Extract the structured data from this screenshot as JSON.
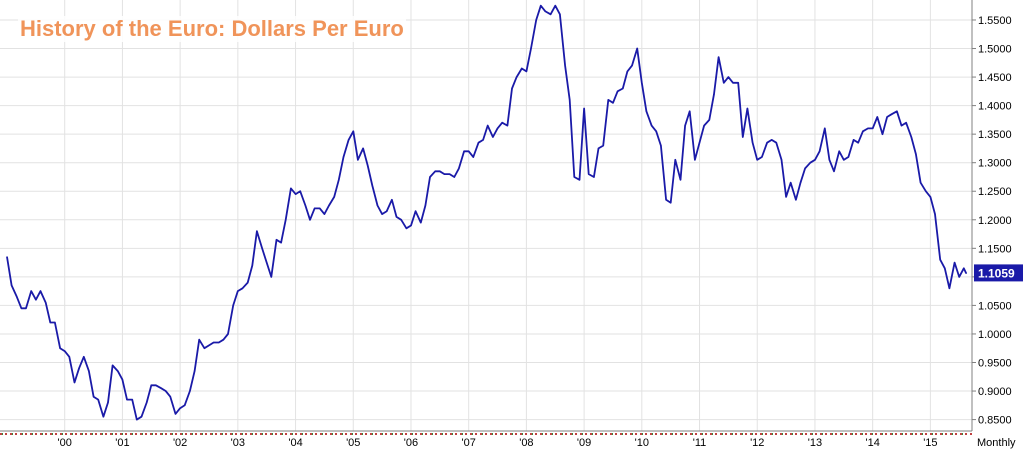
{
  "chart_data": {
    "type": "line",
    "title": "History of the Euro: Dollars Per Euro",
    "frequency_label": "Monthly",
    "last_value_label": "1.1059",
    "ylim": [
      0.83,
      1.585
    ],
    "xlim": [
      1999.0,
      2015.6
    ],
    "y_ticks": [
      "0.8500",
      "0.9000",
      "0.9500",
      "1.0000",
      "1.0500",
      "1.1000",
      "1.1500",
      "1.2000",
      "1.2500",
      "1.3000",
      "1.3500",
      "1.4000",
      "1.4500",
      "1.5000",
      "1.5500"
    ],
    "x_ticks": [
      {
        "label": "'00",
        "x": 2000
      },
      {
        "label": "'01",
        "x": 2001
      },
      {
        "label": "'02",
        "x": 2002
      },
      {
        "label": "'03",
        "x": 2003
      },
      {
        "label": "'04",
        "x": 2004
      },
      {
        "label": "'05",
        "x": 2005
      },
      {
        "label": "'06",
        "x": 2006
      },
      {
        "label": "'07",
        "x": 2007
      },
      {
        "label": "'08",
        "x": 2008
      },
      {
        "label": "'09",
        "x": 2009
      },
      {
        "label": "'10",
        "x": 2010
      },
      {
        "label": "'11",
        "x": 2011
      },
      {
        "label": "'12",
        "x": 2012
      },
      {
        "label": "'13",
        "x": 2013
      },
      {
        "label": "'14",
        "x": 2014
      },
      {
        "label": "'15",
        "x": 2015
      }
    ],
    "grid": true,
    "colors": {
      "line": "#1a1aa8",
      "title": "#f0945a",
      "grid": "#e2e2e2",
      "badge": "#1a1aa8"
    },
    "series": [
      {
        "values": [
          [
            1999.0,
            1.135
          ],
          [
            1999.08,
            1.085
          ],
          [
            1999.17,
            1.065
          ],
          [
            1999.25,
            1.045
          ],
          [
            1999.33,
            1.045
          ],
          [
            1999.42,
            1.075
          ],
          [
            1999.5,
            1.06
          ],
          [
            1999.58,
            1.075
          ],
          [
            1999.67,
            1.055
          ],
          [
            1999.75,
            1.02
          ],
          [
            1999.83,
            1.02
          ],
          [
            1999.92,
            0.975
          ],
          [
            2000.0,
            0.97
          ],
          [
            2000.08,
            0.96
          ],
          [
            2000.17,
            0.915
          ],
          [
            2000.25,
            0.94
          ],
          [
            2000.33,
            0.96
          ],
          [
            2000.42,
            0.935
          ],
          [
            2000.5,
            0.89
          ],
          [
            2000.58,
            0.885
          ],
          [
            2000.67,
            0.855
          ],
          [
            2000.75,
            0.88
          ],
          [
            2000.83,
            0.945
          ],
          [
            2000.92,
            0.935
          ],
          [
            2001.0,
            0.92
          ],
          [
            2001.08,
            0.885
          ],
          [
            2001.17,
            0.885
          ],
          [
            2001.25,
            0.85
          ],
          [
            2001.33,
            0.855
          ],
          [
            2001.42,
            0.88
          ],
          [
            2001.5,
            0.91
          ],
          [
            2001.58,
            0.91
          ],
          [
            2001.67,
            0.905
          ],
          [
            2001.75,
            0.9
          ],
          [
            2001.83,
            0.89
          ],
          [
            2001.92,
            0.86
          ],
          [
            2002.0,
            0.87
          ],
          [
            2002.08,
            0.875
          ],
          [
            2002.17,
            0.9
          ],
          [
            2002.25,
            0.935
          ],
          [
            2002.33,
            0.99
          ],
          [
            2002.42,
            0.975
          ],
          [
            2002.5,
            0.98
          ],
          [
            2002.58,
            0.985
          ],
          [
            2002.67,
            0.985
          ],
          [
            2002.75,
            0.99
          ],
          [
            2002.83,
            1.0
          ],
          [
            2002.92,
            1.05
          ],
          [
            2003.0,
            1.075
          ],
          [
            2003.08,
            1.08
          ],
          [
            2003.17,
            1.09
          ],
          [
            2003.25,
            1.12
          ],
          [
            2003.33,
            1.18
          ],
          [
            2003.42,
            1.15
          ],
          [
            2003.5,
            1.125
          ],
          [
            2003.58,
            1.1
          ],
          [
            2003.67,
            1.165
          ],
          [
            2003.75,
            1.16
          ],
          [
            2003.83,
            1.2
          ],
          [
            2003.92,
            1.255
          ],
          [
            2004.0,
            1.245
          ],
          [
            2004.08,
            1.25
          ],
          [
            2004.17,
            1.225
          ],
          [
            2004.25,
            1.2
          ],
          [
            2004.33,
            1.22
          ],
          [
            2004.42,
            1.22
          ],
          [
            2004.5,
            1.21
          ],
          [
            2004.58,
            1.225
          ],
          [
            2004.67,
            1.24
          ],
          [
            2004.75,
            1.27
          ],
          [
            2004.83,
            1.31
          ],
          [
            2004.92,
            1.34
          ],
          [
            2005.0,
            1.355
          ],
          [
            2005.08,
            1.305
          ],
          [
            2005.17,
            1.325
          ],
          [
            2005.25,
            1.295
          ],
          [
            2005.33,
            1.26
          ],
          [
            2005.42,
            1.225
          ],
          [
            2005.5,
            1.21
          ],
          [
            2005.58,
            1.215
          ],
          [
            2005.67,
            1.235
          ],
          [
            2005.75,
            1.205
          ],
          [
            2005.83,
            1.2
          ],
          [
            2005.92,
            1.185
          ],
          [
            2006.0,
            1.19
          ],
          [
            2006.08,
            1.215
          ],
          [
            2006.17,
            1.195
          ],
          [
            2006.25,
            1.225
          ],
          [
            2006.33,
            1.275
          ],
          [
            2006.42,
            1.285
          ],
          [
            2006.5,
            1.285
          ],
          [
            2006.58,
            1.28
          ],
          [
            2006.67,
            1.28
          ],
          [
            2006.75,
            1.275
          ],
          [
            2006.83,
            1.29
          ],
          [
            2006.92,
            1.32
          ],
          [
            2007.0,
            1.32
          ],
          [
            2007.08,
            1.31
          ],
          [
            2007.17,
            1.335
          ],
          [
            2007.25,
            1.34
          ],
          [
            2007.33,
            1.365
          ],
          [
            2007.42,
            1.345
          ],
          [
            2007.5,
            1.36
          ],
          [
            2007.58,
            1.37
          ],
          [
            2007.67,
            1.365
          ],
          [
            2007.75,
            1.43
          ],
          [
            2007.83,
            1.45
          ],
          [
            2007.92,
            1.465
          ],
          [
            2008.0,
            1.46
          ],
          [
            2008.08,
            1.5
          ],
          [
            2008.17,
            1.55
          ],
          [
            2008.25,
            1.575
          ],
          [
            2008.33,
            1.565
          ],
          [
            2008.42,
            1.56
          ],
          [
            2008.5,
            1.575
          ],
          [
            2008.58,
            1.56
          ],
          [
            2008.67,
            1.47
          ],
          [
            2008.75,
            1.41
          ],
          [
            2008.83,
            1.275
          ],
          [
            2008.92,
            1.27
          ],
          [
            2009.0,
            1.395
          ],
          [
            2009.08,
            1.28
          ],
          [
            2009.17,
            1.275
          ],
          [
            2009.25,
            1.325
          ],
          [
            2009.33,
            1.33
          ],
          [
            2009.42,
            1.41
          ],
          [
            2009.5,
            1.405
          ],
          [
            2009.58,
            1.425
          ],
          [
            2009.67,
            1.43
          ],
          [
            2009.75,
            1.46
          ],
          [
            2009.83,
            1.47
          ],
          [
            2009.92,
            1.5
          ],
          [
            2010.0,
            1.44
          ],
          [
            2010.08,
            1.39
          ],
          [
            2010.17,
            1.365
          ],
          [
            2010.25,
            1.355
          ],
          [
            2010.33,
            1.33
          ],
          [
            2010.42,
            1.235
          ],
          [
            2010.5,
            1.23
          ],
          [
            2010.58,
            1.305
          ],
          [
            2010.67,
            1.27
          ],
          [
            2010.75,
            1.365
          ],
          [
            2010.83,
            1.39
          ],
          [
            2010.92,
            1.305
          ],
          [
            2011.0,
            1.335
          ],
          [
            2011.08,
            1.365
          ],
          [
            2011.17,
            1.375
          ],
          [
            2011.25,
            1.42
          ],
          [
            2011.33,
            1.485
          ],
          [
            2011.42,
            1.44
          ],
          [
            2011.5,
            1.45
          ],
          [
            2011.58,
            1.44
          ],
          [
            2011.67,
            1.44
          ],
          [
            2011.75,
            1.345
          ],
          [
            2011.83,
            1.395
          ],
          [
            2011.92,
            1.335
          ],
          [
            2012.0,
            1.305
          ],
          [
            2012.08,
            1.31
          ],
          [
            2012.17,
            1.335
          ],
          [
            2012.25,
            1.34
          ],
          [
            2012.33,
            1.335
          ],
          [
            2012.42,
            1.305
          ],
          [
            2012.5,
            1.24
          ],
          [
            2012.58,
            1.265
          ],
          [
            2012.67,
            1.235
          ],
          [
            2012.75,
            1.265
          ],
          [
            2012.83,
            1.29
          ],
          [
            2012.92,
            1.3
          ],
          [
            2013.0,
            1.305
          ],
          [
            2013.08,
            1.32
          ],
          [
            2013.17,
            1.36
          ],
          [
            2013.25,
            1.305
          ],
          [
            2013.33,
            1.285
          ],
          [
            2013.42,
            1.32
          ],
          [
            2013.5,
            1.305
          ],
          [
            2013.58,
            1.31
          ],
          [
            2013.67,
            1.34
          ],
          [
            2013.75,
            1.335
          ],
          [
            2013.83,
            1.355
          ],
          [
            2013.92,
            1.36
          ],
          [
            2014.0,
            1.36
          ],
          [
            2014.08,
            1.38
          ],
          [
            2014.17,
            1.35
          ],
          [
            2014.25,
            1.38
          ],
          [
            2014.33,
            1.385
          ],
          [
            2014.42,
            1.39
          ],
          [
            2014.5,
            1.365
          ],
          [
            2014.58,
            1.37
          ],
          [
            2014.67,
            1.345
          ],
          [
            2014.75,
            1.315
          ],
          [
            2014.83,
            1.265
          ],
          [
            2014.92,
            1.25
          ],
          [
            2015.0,
            1.24
          ],
          [
            2015.08,
            1.21
          ],
          [
            2015.17,
            1.13
          ],
          [
            2015.25,
            1.115
          ],
          [
            2015.33,
            1.08
          ],
          [
            2015.42,
            1.125
          ],
          [
            2015.5,
            1.1
          ],
          [
            2015.58,
            1.115
          ],
          [
            2015.62,
            1.106
          ]
        ]
      }
    ]
  }
}
